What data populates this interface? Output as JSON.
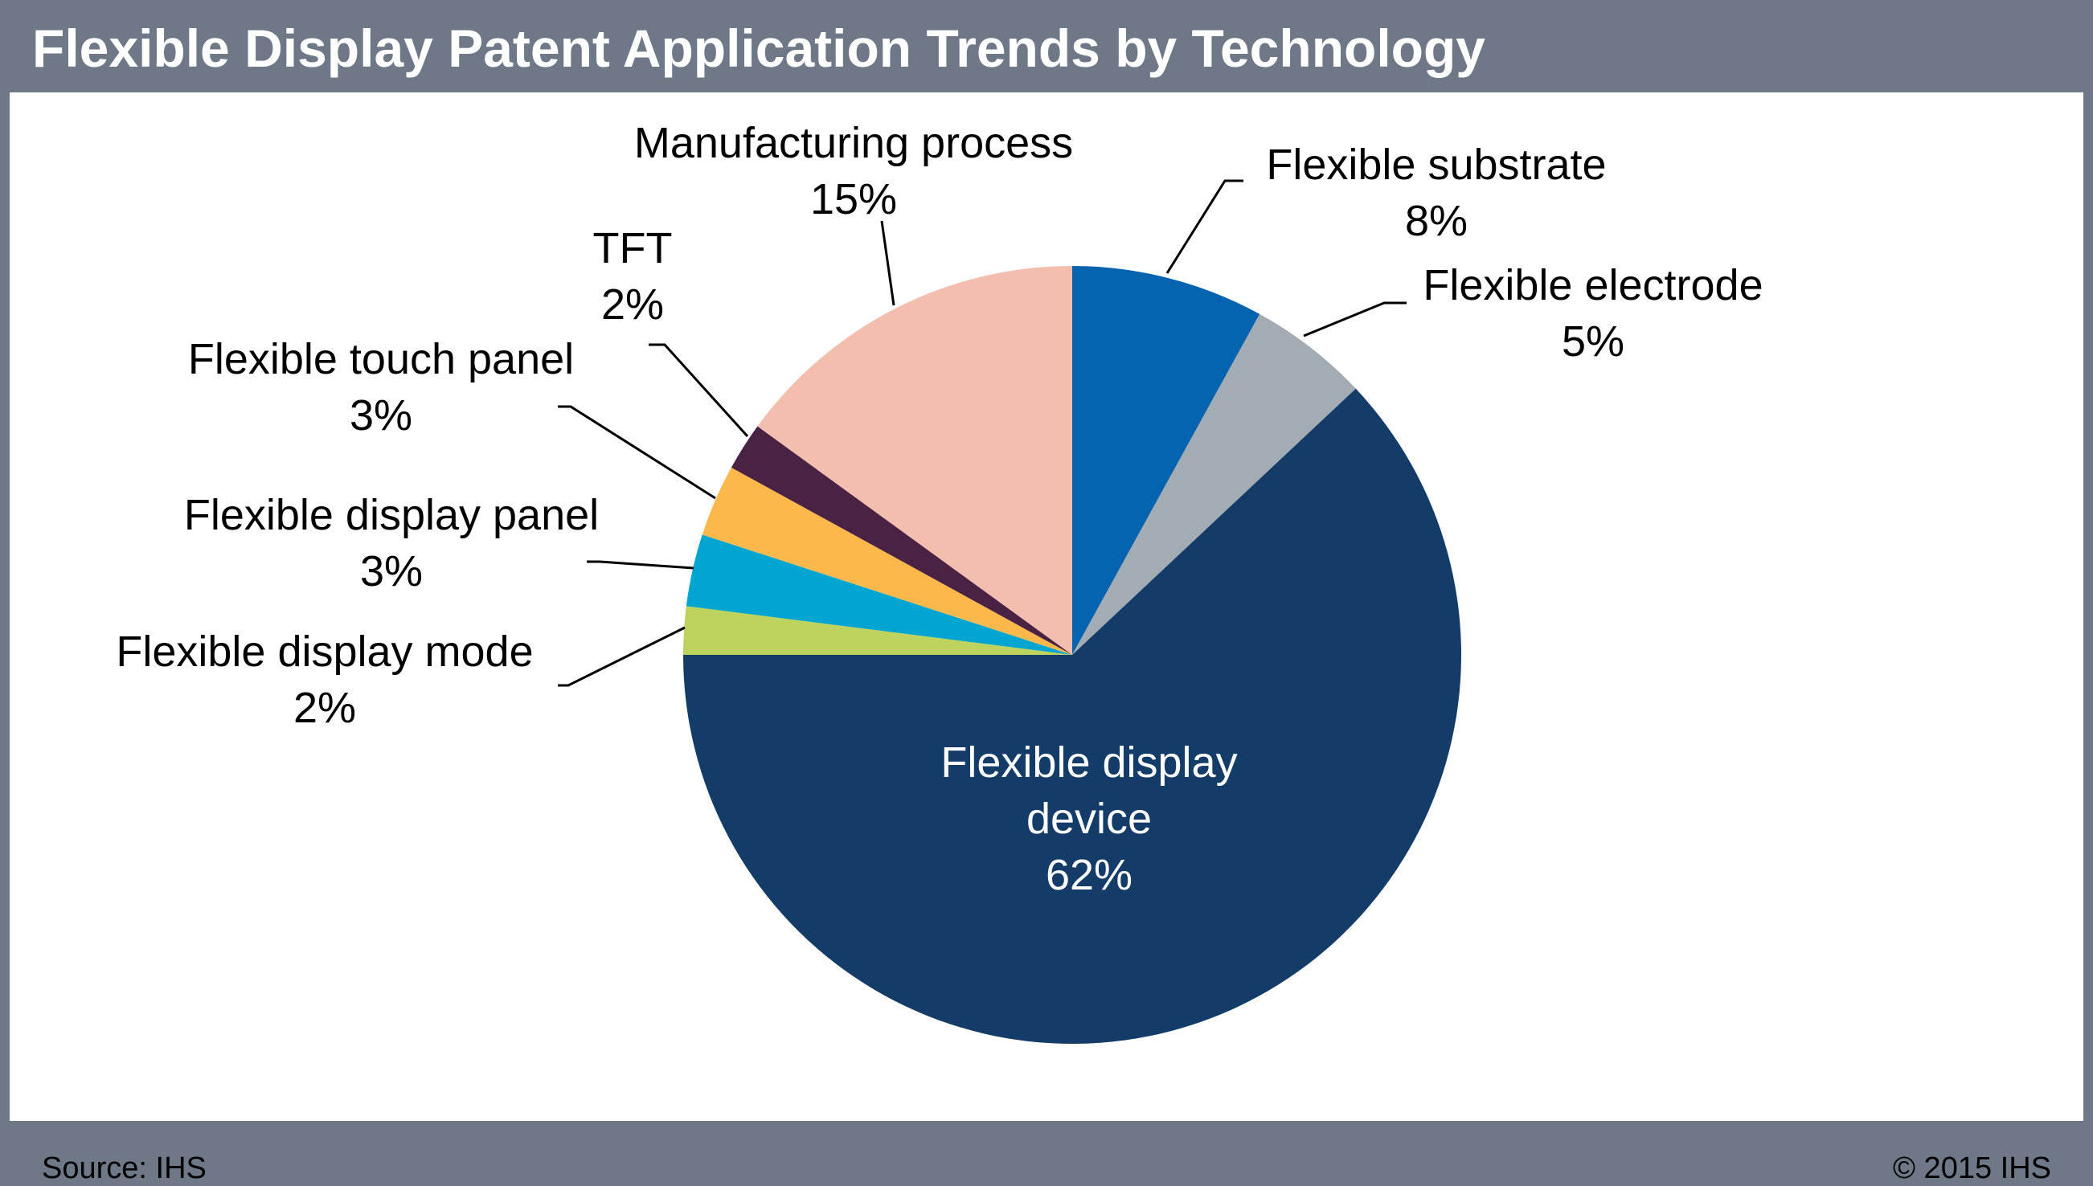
{
  "title": "Flexible Display Patent Application Trends by Technology",
  "footer": {
    "source": "Source: IHS",
    "copyright": "© 2015 IHS"
  },
  "chart_data": {
    "type": "pie",
    "title": "Flexible Display Patent Application Trends by Technology",
    "slices": [
      {
        "label": "Flexible substrate",
        "label_lines": [
          "Flexible substrate"
        ],
        "percent_label": "8%",
        "value": 8,
        "color": "#0563b0"
      },
      {
        "label": "Flexible electrode",
        "label_lines": [
          "Flexible electrode"
        ],
        "percent_label": "5%",
        "value": 5,
        "color": "#a3abb3"
      },
      {
        "label": "Flexible display device",
        "label_lines": [
          "Flexible display",
          "device"
        ],
        "percent_label": "62%",
        "value": 62,
        "color": "#133c68"
      },
      {
        "label": "Flexible display mode",
        "label_lines": [
          "Flexible display mode"
        ],
        "percent_label": "2%",
        "value": 2,
        "color": "#bed35d"
      },
      {
        "label": "Flexible display panel",
        "label_lines": [
          "Flexible display panel"
        ],
        "percent_label": "3%",
        "value": 3,
        "color": "#00a6d0"
      },
      {
        "label": "Flexible touch panel",
        "label_lines": [
          "Flexible touch panel"
        ],
        "percent_label": "3%",
        "value": 3,
        "color": "#fdb84c"
      },
      {
        "label": "TFT",
        "label_lines": [
          "TFT"
        ],
        "percent_label": "2%",
        "value": 2,
        "color": "#4a2244"
      },
      {
        "label": "Manufacturing process",
        "label_lines": [
          "Manufacturing process"
        ],
        "percent_label": "15%",
        "value": 15,
        "color": "#f4beaf"
      }
    ],
    "start_angle": "12 o'clock",
    "direction": "clockwise",
    "legend": "none"
  }
}
